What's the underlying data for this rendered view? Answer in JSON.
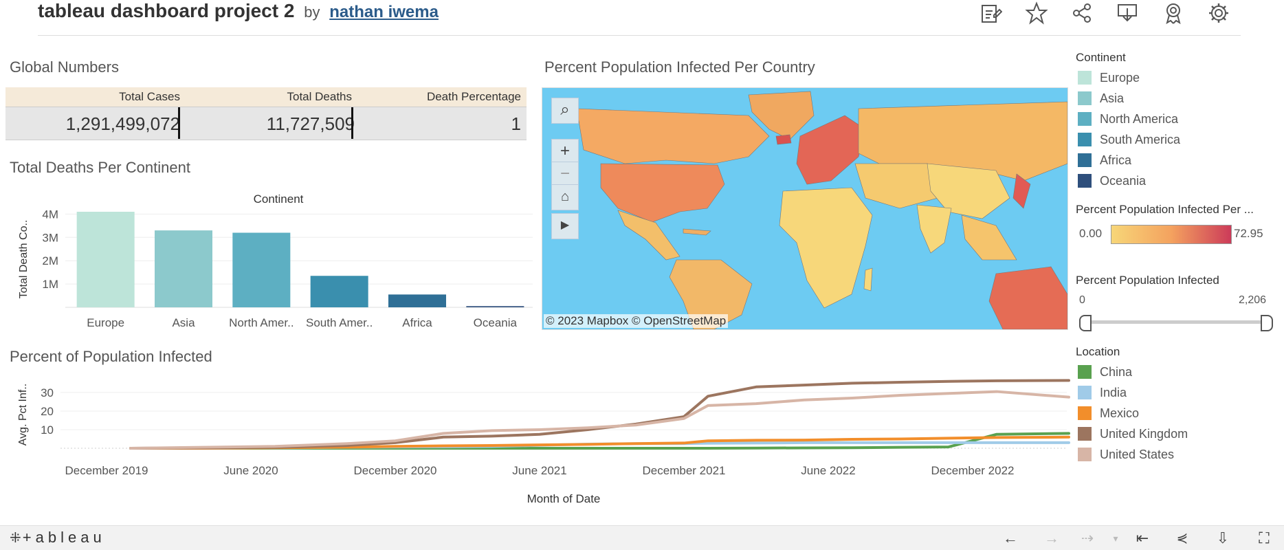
{
  "header": {
    "title": "tableau dashboard project 2",
    "by": "by",
    "author": "nathan iwema",
    "toolbar_icons": [
      "edit-icon",
      "star-icon",
      "share-icon",
      "download-icon",
      "badge-icon",
      "gear-icon"
    ]
  },
  "global_numbers": {
    "title": "Global Numbers",
    "headers": [
      "Total Cases",
      "Total Deaths",
      "Death Percentage"
    ],
    "values": [
      "1,291,499,072",
      "11,727,509",
      "1"
    ]
  },
  "deaths_chart": {
    "title": "Total Deaths Per Continent",
    "chart_data": {
      "type": "bar",
      "title": "Continent",
      "ylabel": "Total Death Co..",
      "categories": [
        "Europe",
        "Asia",
        "North Amer..",
        "South Amer..",
        "Africa",
        "Oceania"
      ],
      "values": [
        4100000,
        3300000,
        3200000,
        1350000,
        550000,
        50000
      ],
      "yticks": [
        "1M",
        "2M",
        "3M",
        "4M"
      ],
      "ytick_values": [
        1000000,
        2000000,
        3000000,
        4000000
      ],
      "ylim": [
        0,
        4100000
      ],
      "colors": [
        "#bde4d9",
        "#8cc9cc",
        "#5dafc2",
        "#3a8fae",
        "#2f6f96",
        "#2e4f7c"
      ]
    }
  },
  "map_panel": {
    "title": "Percent Population Infected Per Country",
    "attribution": "© 2023 Mapbox  © OpenStreetMap",
    "controls": [
      "search-icon",
      "zoom-in-icon",
      "zoom-out-icon",
      "home-icon",
      "play-icon"
    ]
  },
  "continent_legend": {
    "title": "Continent",
    "items": [
      {
        "label": "Europe",
        "color": "#bde4d9"
      },
      {
        "label": "Asia",
        "color": "#8cc9cc"
      },
      {
        "label": "North America",
        "color": "#5dafc2"
      },
      {
        "label": "South America",
        "color": "#3a8fae"
      },
      {
        "label": "Africa",
        "color": "#2f6f96"
      },
      {
        "label": "Oceania",
        "color": "#2e4f7c"
      }
    ]
  },
  "color_legend": {
    "title": "Percent Population Infected Per ...",
    "min": "0.00",
    "max": "72.95",
    "gradient_start": "#f7d678",
    "gradient_end": "#cc3b59"
  },
  "slider_filter": {
    "title": "Percent Population Infected",
    "min": "0",
    "max": "2,206"
  },
  "line_chart": {
    "title": "Percent of Population Infected",
    "chart_data": {
      "type": "line",
      "ylabel": "Avg. Pct Inf..",
      "xlabel": "Month of Date",
      "xticks": [
        "December 2019",
        "June 2020",
        "December 2020",
        "June 2021",
        "December 2021",
        "June 2022",
        "December 2022"
      ],
      "yticks": [
        "10",
        "20",
        "30"
      ],
      "ytick_values": [
        10,
        20,
        30
      ],
      "ylim": [
        0,
        37
      ],
      "x": [
        "Jan 2020",
        "Apr 2020",
        "Jul 2020",
        "Oct 2020",
        "Dec 2020",
        "Feb 2021",
        "Apr 2021",
        "Jun 2021",
        "Aug 2021",
        "Oct 2021",
        "Dec 2021",
        "Jan 2022",
        "Mar 2022",
        "May 2022",
        "Jul 2022",
        "Sep 2022",
        "Nov 2022",
        "Jan 2023",
        "Apr 2023"
      ],
      "series": [
        {
          "name": "China",
          "color": "#59a14f",
          "values": [
            0,
            0,
            0,
            0,
            0,
            0,
            0,
            0,
            0,
            0,
            0,
            0,
            0.1,
            0.2,
            0.3,
            0.5,
            0.7,
            7.5,
            8
          ]
        },
        {
          "name": "India",
          "color": "#a0cbe8",
          "values": [
            0,
            0,
            0.2,
            0.5,
            0.7,
            0.8,
            1,
            1.6,
            2.2,
            2.5,
            2.5,
            2.7,
            2.8,
            3,
            3,
            3,
            3,
            3,
            3
          ]
        },
        {
          "name": "Mexico",
          "color": "#f28e2b",
          "values": [
            0,
            0,
            0.3,
            0.6,
            1,
            1.3,
            1.5,
            1.8,
            2.1,
            2.5,
            2.8,
            4,
            4.3,
            4.4,
            4.8,
            5,
            5.4,
            5.8,
            6
          ]
        },
        {
          "name": "United Kingdom",
          "color": "#9c755f",
          "values": [
            0,
            0.2,
            0.5,
            1.5,
            3,
            6,
            6.5,
            7.5,
            10,
            13,
            17,
            28,
            33,
            34,
            35,
            35.5,
            36,
            36.3,
            36.5
          ]
        },
        {
          "name": "United States",
          "color": "#d7b5a6",
          "values": [
            0,
            0.5,
            1,
            2.5,
            4,
            8,
            9.5,
            10,
            11,
            12.5,
            16,
            23,
            24,
            26,
            27,
            28.5,
            29.5,
            30.5,
            27.5
          ]
        }
      ]
    }
  },
  "location_legend": {
    "title": "Location",
    "items": [
      {
        "label": "China",
        "color": "#59a14f"
      },
      {
        "label": "India",
        "color": "#a0cbe8"
      },
      {
        "label": "Mexico",
        "color": "#f28e2b"
      },
      {
        "label": "United Kingdom",
        "color": "#9c755f"
      },
      {
        "label": "United States",
        "color": "#d7b5a6"
      }
    ]
  },
  "footer": {
    "logo": "+ableau",
    "icons": [
      "undo-icon",
      "redo-icon",
      "replay-icon",
      "revert-icon",
      "share-icon",
      "download-icon",
      "fullscreen-icon"
    ]
  }
}
